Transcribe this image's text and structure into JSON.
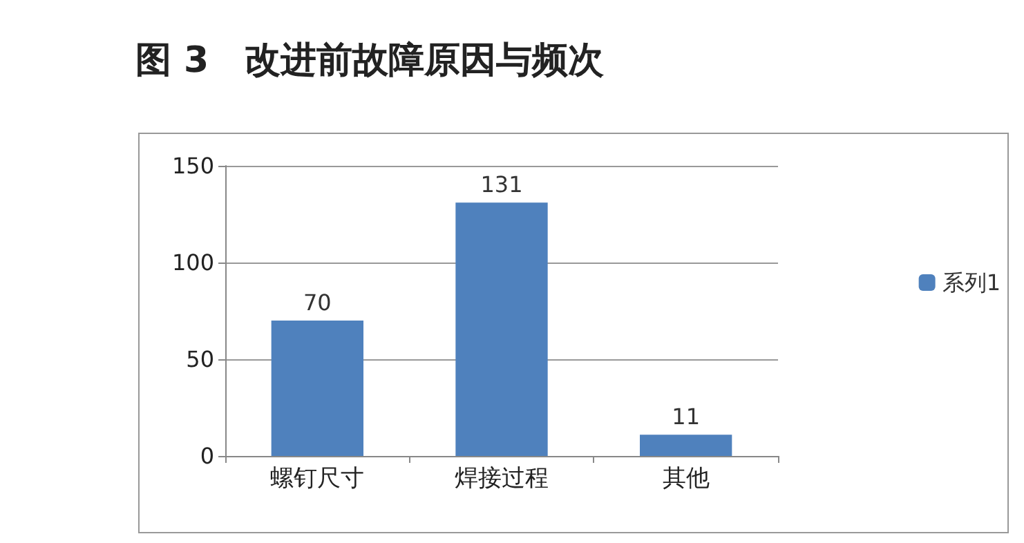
{
  "chart_data": {
    "type": "bar",
    "title": "图 3　改进前故障原因与频次",
    "categories": [
      "螺钉尺寸",
      "焊接过程",
      "其他"
    ],
    "series": [
      {
        "name": "系列1",
        "color": "#4f81bd",
        "values": [
          70,
          131,
          11
        ]
      }
    ],
    "ylim": [
      0,
      150
    ],
    "yticks": [
      0,
      50,
      100,
      150
    ],
    "grid": "y",
    "legend": "right",
    "data_labels": true
  }
}
